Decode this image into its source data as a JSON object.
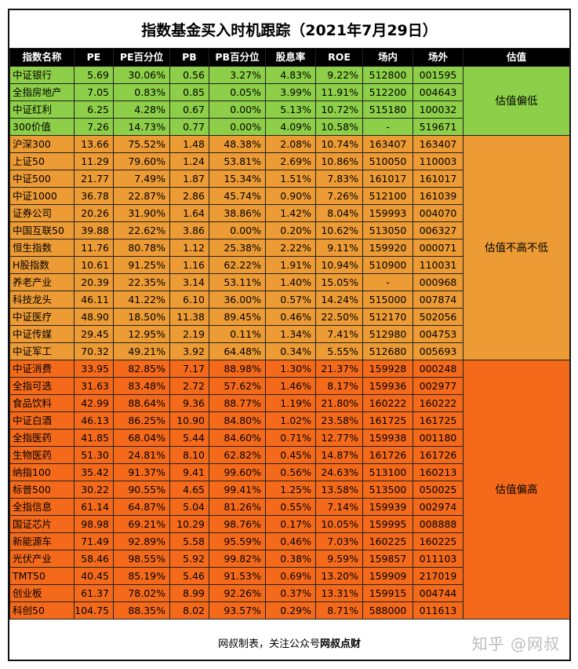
{
  "title": "指数基金买入时机跟踪（2021年7月29日）",
  "headers": [
    "指数名称",
    "PE",
    "PE百分位",
    "PB",
    "PB百分位",
    "股息率",
    "ROE",
    "场内",
    "场外",
    "估值"
  ],
  "groups": [
    {
      "label": "估值偏低",
      "color": "#8dcf48",
      "rows": [
        [
          "中证银行",
          "5.69",
          "30.06%",
          "0.56",
          "3.27%",
          "4.83%",
          "9.22%",
          "512800",
          "001595"
        ],
        [
          "全指房地产",
          "7.05",
          "0.83%",
          "0.85",
          "0.05%",
          "3.99%",
          "11.91%",
          "512200",
          "004643"
        ],
        [
          "中证红利",
          "6.25",
          "4.28%",
          "0.67",
          "0.00%",
          "5.13%",
          "10.72%",
          "515180",
          "100032"
        ],
        [
          "300价值",
          "7.26",
          "14.73%",
          "0.77",
          "0.00%",
          "4.09%",
          "10.58%",
          "-",
          "519671"
        ]
      ]
    },
    {
      "label": "估值不高不低",
      "color": "#ec9b35",
      "rows": [
        [
          "沪深300",
          "13.66",
          "75.52%",
          "1.48",
          "48.38%",
          "2.08%",
          "10.74%",
          "163407",
          "163407"
        ],
        [
          "上证50",
          "11.29",
          "79.60%",
          "1.24",
          "53.81%",
          "2.69%",
          "10.86%",
          "510050",
          "110003"
        ],
        [
          "中证500",
          "21.77",
          "7.49%",
          "1.87",
          "15.34%",
          "1.51%",
          "7.83%",
          "161017",
          "161017"
        ],
        [
          "中证1000",
          "36.78",
          "22.87%",
          "2.86",
          "45.74%",
          "0.90%",
          "7.26%",
          "512100",
          "161039"
        ],
        [
          "证券公司",
          "20.26",
          "31.90%",
          "1.64",
          "38.86%",
          "1.42%",
          "8.04%",
          "159993",
          "004070"
        ],
        [
          "中国互联50",
          "39.88",
          "22.62%",
          "3.86",
          "0.00%",
          "0.20%",
          "10.62%",
          "513050",
          "006327"
        ],
        [
          "恒生指数",
          "11.76",
          "80.78%",
          "1.12",
          "25.38%",
          "2.22%",
          "9.11%",
          "159920",
          "000071"
        ],
        [
          "H股指数",
          "10.61",
          "91.25%",
          "1.16",
          "62.22%",
          "1.91%",
          "10.94%",
          "510900",
          "110031"
        ],
        [
          "养老产业",
          "20.39",
          "22.35%",
          "3.14",
          "53.11%",
          "1.40%",
          "15.05%",
          "-",
          "000968"
        ],
        [
          "科技龙头",
          "46.11",
          "41.22%",
          "6.10",
          "36.00%",
          "0.57%",
          "14.24%",
          "515000",
          "007874"
        ],
        [
          "中证医疗",
          "48.90",
          "18.50%",
          "11.38",
          "89.45%",
          "0.46%",
          "22.50%",
          "512170",
          "502056"
        ],
        [
          "中证传媒",
          "29.45",
          "12.95%",
          "2.19",
          "0.11%",
          "1.34%",
          "7.41%",
          "512980",
          "004753"
        ],
        [
          "中证军工",
          "70.32",
          "49.21%",
          "3.92",
          "64.48%",
          "0.34%",
          "5.55%",
          "512680",
          "005693"
        ]
      ]
    },
    {
      "label": "估值偏高",
      "color": "#f46a1a",
      "rows": [
        [
          "中证消费",
          "33.95",
          "82.85%",
          "7.17",
          "88.98%",
          "1.30%",
          "21.37%",
          "159928",
          "000248"
        ],
        [
          "全指可选",
          "31.63",
          "83.48%",
          "2.72",
          "57.62%",
          "1.46%",
          "8.17%",
          "159936",
          "002977"
        ],
        [
          "食品饮料",
          "42.99",
          "88.64%",
          "9.36",
          "88.77%",
          "1.19%",
          "21.80%",
          "160222",
          "160222"
        ],
        [
          "中证白酒",
          "46.13",
          "86.25%",
          "10.90",
          "84.80%",
          "1.02%",
          "23.58%",
          "161725",
          "161725"
        ],
        [
          "全指医药",
          "41.85",
          "68.04%",
          "5.44",
          "84.60%",
          "0.71%",
          "12.77%",
          "159938",
          "001180"
        ],
        [
          "生物医药",
          "51.30",
          "24.81%",
          "8.10",
          "62.82%",
          "0.45%",
          "14.87%",
          "161726",
          "161726"
        ],
        [
          "纳指100",
          "35.42",
          "91.37%",
          "9.41",
          "99.60%",
          "0.56%",
          "24.63%",
          "513100",
          "160213"
        ],
        [
          "标普500",
          "30.22",
          "90.55%",
          "4.65",
          "99.41%",
          "1.25%",
          "13.58%",
          "513500",
          "050025"
        ],
        [
          "全指信息",
          "61.14",
          "64.87%",
          "5.04",
          "81.26%",
          "0.55%",
          "7.14%",
          "159939",
          "002974"
        ],
        [
          "国证芯片",
          "98.98",
          "69.21%",
          "10.29",
          "98.76%",
          "0.17%",
          "10.05%",
          "159995",
          "008888"
        ],
        [
          "新能源车",
          "71.49",
          "92.89%",
          "5.58",
          "95.59%",
          "0.46%",
          "7.03%",
          "160225",
          "160225"
        ],
        [
          "光伏产业",
          "58.46",
          "98.55%",
          "5.92",
          "99.82%",
          "0.38%",
          "9.59%",
          "159857",
          "011103"
        ],
        [
          "TMT50",
          "40.45",
          "85.19%",
          "5.46",
          "91.53%",
          "0.69%",
          "13.20%",
          "159909",
          "217019"
        ],
        [
          "创业板",
          "61.37",
          "78.02%",
          "8.99",
          "92.26%",
          "0.37%",
          "13.31%",
          "159915",
          "004744"
        ],
        [
          "科创50",
          "104.75",
          "88.35%",
          "8.02",
          "93.57%",
          "0.29%",
          "8.71%",
          "588000",
          "011613"
        ]
      ]
    }
  ],
  "footer": {
    "text_prefix": "网叔制表，关注公众号",
    "text_bold": "网叔点财",
    "watermark": "知乎 @网叔"
  }
}
